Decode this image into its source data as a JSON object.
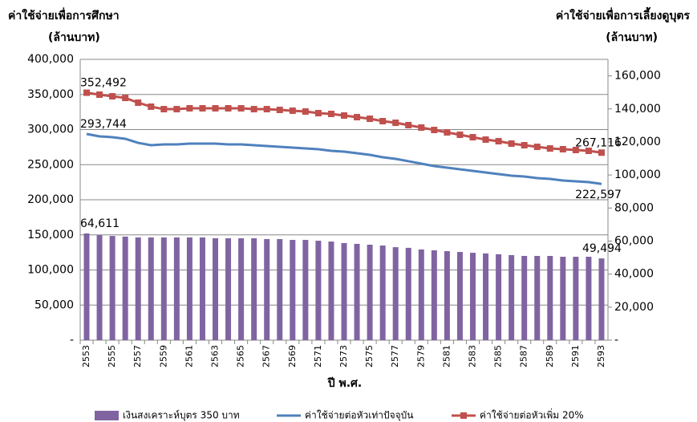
{
  "chart_data": {
    "type": "bar-line",
    "ylabel": [
      "ค่าใช้จ่ายเพื่อการศึกษา",
      "(ล้านบาท)"
    ],
    "y2label": [
      "ค่าใช้จ่ายเพื่อการเลี้ยงดูบุตร",
      "(ล้านบาท)"
    ],
    "xlabel": "ปี พ.ศ.",
    "categories": [
      "2553",
      null,
      "2555",
      null,
      "2557",
      null,
      "2559",
      null,
      "2561",
      null,
      "2563",
      null,
      "2565",
      null,
      "2567",
      null,
      "2569",
      null,
      "2571",
      null,
      "2573",
      null,
      "2575",
      null,
      "2577",
      null,
      "2579",
      null,
      "2581",
      null,
      "2583",
      null,
      "2585",
      null,
      "2587",
      null,
      "2589",
      null,
      "2591",
      null,
      "2593"
    ],
    "ylim": [
      0,
      400000
    ],
    "yticks": [
      {
        "value": 0,
        "label": "-"
      },
      {
        "value": 50000,
        "label": "50,000"
      },
      {
        "value": 100000,
        "label": "100,000"
      },
      {
        "value": 150000,
        "label": "150,000"
      },
      {
        "value": 200000,
        "label": "200,000"
      },
      {
        "value": 250000,
        "label": "250,000"
      },
      {
        "value": 300000,
        "label": "300,000"
      },
      {
        "value": 350000,
        "label": "350,000"
      },
      {
        "value": 400000,
        "label": "400,000"
      }
    ],
    "y2lim": [
      0,
      170000
    ],
    "y2ticks": [
      {
        "value": 0,
        "label": "-"
      },
      {
        "value": 20000,
        "label": "20,000"
      },
      {
        "value": 40000,
        "label": "40,000"
      },
      {
        "value": 60000,
        "label": "60,000"
      },
      {
        "value": 80000,
        "label": "80,000"
      },
      {
        "value": 100000,
        "label": "100,000"
      },
      {
        "value": 120000,
        "label": "120,000"
      },
      {
        "value": 140000,
        "label": "140,000"
      },
      {
        "value": 160000,
        "label": "160,000"
      }
    ],
    "grid": true,
    "series": [
      {
        "name": "เงินสงเคราะห์บุตร 350 บาท",
        "type": "bar",
        "axis": "y2",
        "color": "#8064a2",
        "values": [
          64611,
          63600,
          63100,
          62700,
          62200,
          62200,
          62200,
          62200,
          62200,
          62200,
          61700,
          61700,
          61700,
          61700,
          61200,
          61200,
          60700,
          60700,
          60200,
          59700,
          58800,
          58300,
          57800,
          57300,
          56300,
          55900,
          54900,
          54400,
          53900,
          53400,
          52900,
          52500,
          52000,
          51500,
          51000,
          51000,
          51000,
          50500,
          50500,
          50500,
          49494
        ],
        "value_labels": [
          "64,611",
          null,
          null,
          null,
          null,
          null,
          null,
          null,
          null,
          null,
          null,
          null,
          null,
          null,
          null,
          null,
          null,
          null,
          null,
          null,
          null,
          null,
          null,
          null,
          null,
          null,
          null,
          null,
          null,
          null,
          null,
          null,
          null,
          null,
          null,
          null,
          null,
          null,
          null,
          null,
          "49,494"
        ]
      },
      {
        "name": "ค่าใช้จ่ายต่อหัวเท่าปัจจุบัน",
        "type": "line",
        "color": "#4f81bd",
        "values": [
          293744,
          290300,
          289100,
          286900,
          281100,
          277700,
          278900,
          278900,
          280000,
          280000,
          280000,
          278900,
          278900,
          277700,
          276600,
          275400,
          274300,
          273100,
          272000,
          269700,
          268600,
          266300,
          264000,
          260600,
          258300,
          254900,
          251400,
          248000,
          245700,
          243400,
          241100,
          238900,
          236600,
          234300,
          233100,
          230900,
          229700,
          227400,
          226300,
          225100,
          222597
        ],
        "value_labels": [
          "293,744",
          null,
          null,
          null,
          null,
          null,
          null,
          null,
          null,
          null,
          null,
          null,
          null,
          null,
          null,
          null,
          null,
          null,
          null,
          null,
          null,
          null,
          null,
          null,
          null,
          null,
          null,
          null,
          null,
          null,
          null,
          null,
          null,
          null,
          null,
          null,
          null,
          null,
          null,
          null,
          "222,597"
        ]
      },
      {
        "name": "ค่าใช้จ่ายต่อหัวเพิ่ม 20%",
        "type": "line",
        "marker": "square",
        "color": "#c0504d",
        "values": [
          352492,
          349700,
          347400,
          345100,
          338300,
          332600,
          329100,
          329100,
          330300,
          330300,
          330300,
          330300,
          330300,
          329100,
          329100,
          328000,
          326900,
          325700,
          323400,
          322300,
          320000,
          317700,
          315400,
          312000,
          309700,
          306300,
          302900,
          299400,
          296000,
          292600,
          289100,
          285700,
          283400,
          280000,
          277700,
          275400,
          273100,
          272000,
          270900,
          269700,
          267116
        ],
        "value_labels": [
          "352,492",
          null,
          null,
          null,
          null,
          null,
          null,
          null,
          null,
          null,
          null,
          null,
          null,
          null,
          null,
          null,
          null,
          null,
          null,
          null,
          null,
          null,
          null,
          null,
          null,
          null,
          null,
          null,
          null,
          null,
          null,
          null,
          null,
          null,
          null,
          null,
          null,
          null,
          null,
          null,
          "267,116"
        ]
      }
    ]
  }
}
